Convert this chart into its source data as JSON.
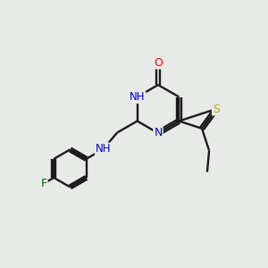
{
  "background_color": "#e8eae8",
  "bond_color": "#1a1a1a",
  "atom_colors": {
    "O": "#ff0000",
    "N": "#0000cc",
    "S": "#bbaa00",
    "F": "#006400",
    "C": "#1a1a1a",
    "H": "#444444"
  },
  "figsize": [
    3.0,
    3.0
  ],
  "dpi": 100
}
